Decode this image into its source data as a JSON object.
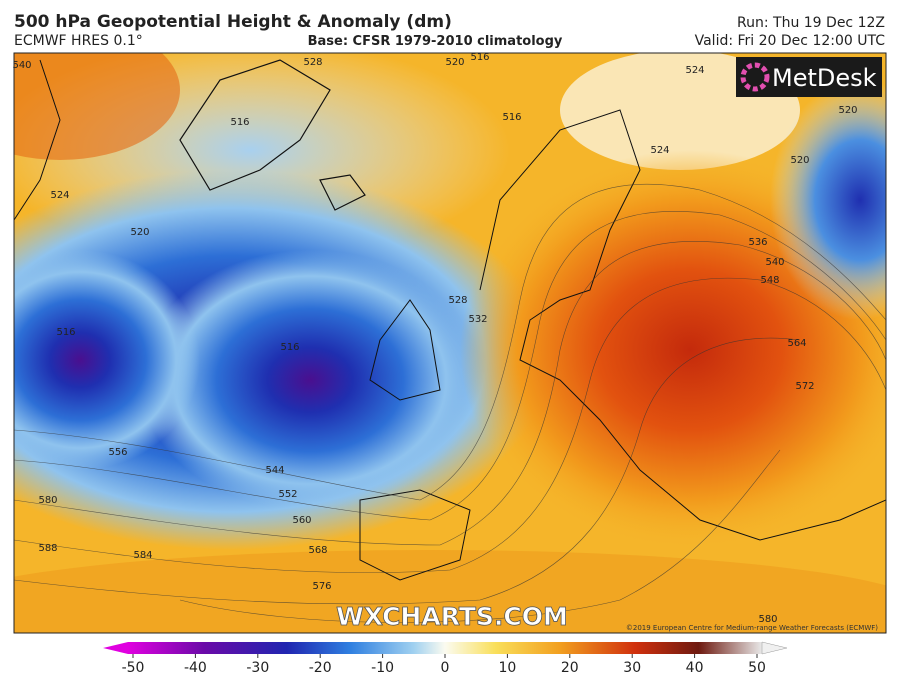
{
  "header": {
    "title": "500 hPa Geopotential Height & Anomaly (dm)",
    "model": "ECMWF HRES 0.1°",
    "base": "Base: CFSR 1979-2010 climatology",
    "run": "Run: Thu 19 Dec 12Z",
    "valid": "Valid: Fri 20 Dec 12:00 UTC"
  },
  "logo": "MetDesk",
  "watermark": "WXCHARTS.COM",
  "copyright": "©2019 European Centre for Medium-range Weather Forecasts (ECMWF)",
  "contour_labels": [
    "540",
    "528",
    "520",
    "516",
    "524",
    "520",
    "516",
    "516",
    "524",
    "520",
    "524",
    "520",
    "536",
    "540",
    "548",
    "564",
    "572",
    "528",
    "532",
    "556",
    "544",
    "552",
    "560",
    "568",
    "576",
    "580",
    "588",
    "584",
    "580",
    "516",
    "516"
  ],
  "colorbar": {
    "ticks": [
      -50,
      -40,
      -30,
      -20,
      -10,
      0,
      10,
      20,
      30,
      40,
      50
    ]
  }
}
